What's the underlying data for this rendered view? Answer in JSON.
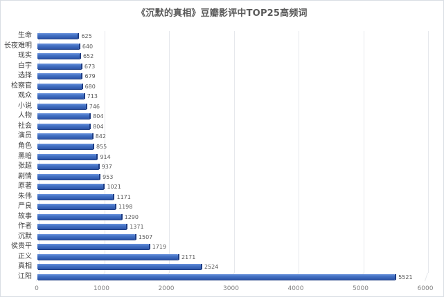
{
  "title": "《沉默的真相》豆瓣影评中TOP25高频词",
  "chart_data": {
    "type": "bar",
    "orientation": "horizontal",
    "style": "3d-clustered",
    "title": "《沉默的真相》豆瓣影评中TOP25高频词",
    "xlabel": "",
    "ylabel": "",
    "xlim": [
      0,
      6000
    ],
    "xticks": [
      "0",
      "1000",
      "2000",
      "3000",
      "4000",
      "5000",
      "6000"
    ],
    "grid": true,
    "legend": "none",
    "bar_color": "#4472C4",
    "categories": [
      "生命",
      "长夜难明",
      "现实",
      "白宇",
      "选择",
      "检察官",
      "观众",
      "小说",
      "人物",
      "社会",
      "演员",
      "角色",
      "黑暗",
      "张超",
      "剧情",
      "原著",
      "朱伟",
      "严良",
      "故事",
      "作者",
      "沉默",
      "侯贵平",
      "正义",
      "真相",
      "江阳"
    ],
    "values": [
      625,
      640,
      652,
      673,
      679,
      680,
      713,
      746,
      804,
      804,
      842,
      855,
      914,
      937,
      953,
      1021,
      1171,
      1198,
      1290,
      1371,
      1507,
      1719,
      2171,
      2524,
      5521
    ],
    "value_labels": [
      "625",
      "640",
      "652",
      "673",
      "679",
      "680",
      "713",
      "746",
      "804",
      "804",
      "842",
      "855",
      "914",
      "937",
      "953",
      "1021",
      "1171",
      "1198",
      "1290",
      "1371",
      "1507",
      "1719",
      "2171",
      "2524",
      "5521"
    ]
  }
}
